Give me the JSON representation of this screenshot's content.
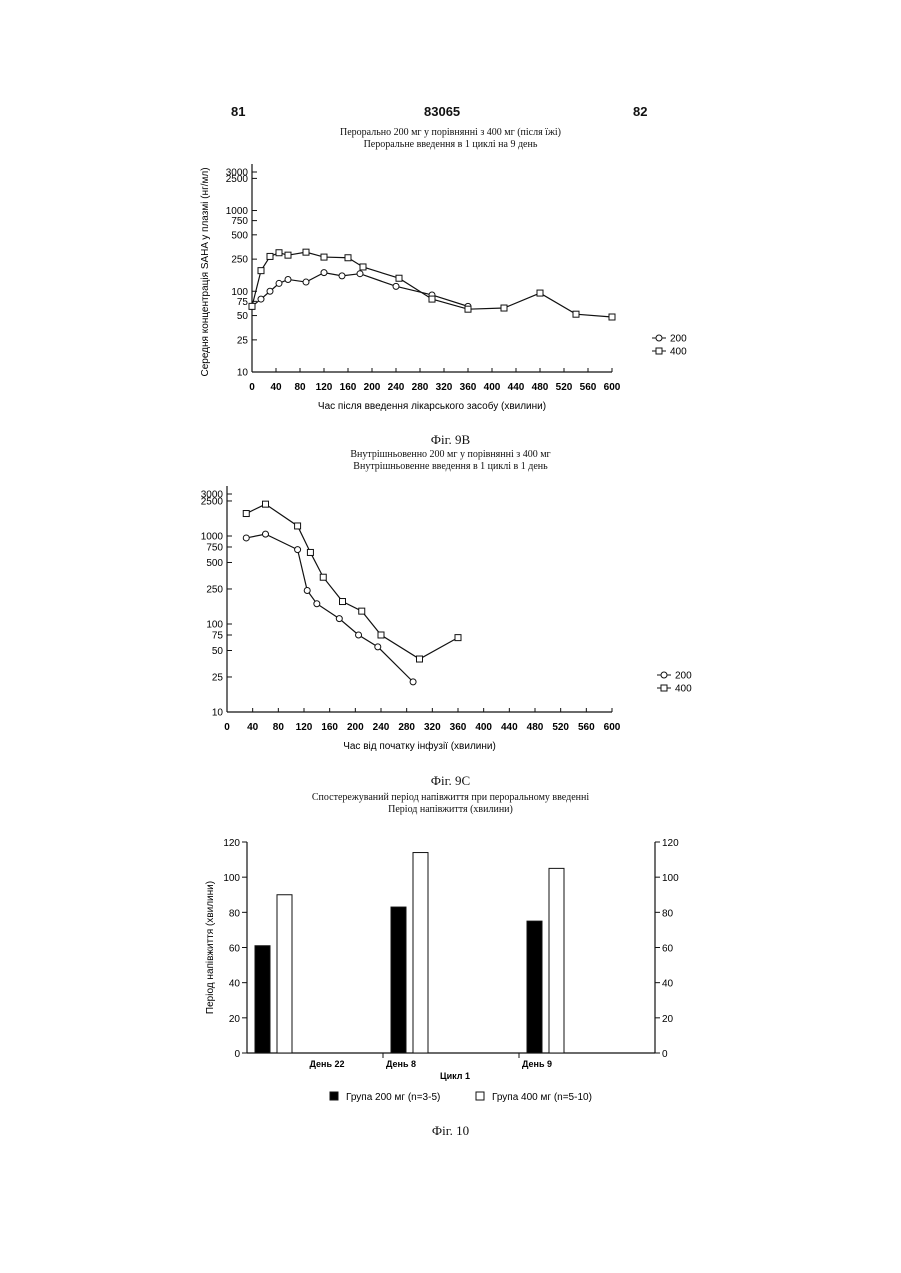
{
  "header": {
    "left_page": "81",
    "doc_number": "83065",
    "right_page": "82"
  },
  "figures": {
    "chart1_title_line1": "Перорально 200 мг у порівнянні з 400 мг (після їжі)",
    "chart1_title_line2": "Пероральне введення в 1 циклі на 9 день",
    "fig9b_label": "Фіг. 9В",
    "chart2_title_line1": "Внутрішньовенно 200 мг у порівнянні з 400 мг",
    "chart2_title_line2": "Внутрішньовенне введення в 1 циклі в 1 день",
    "fig9c_label": "Фіг. 9С",
    "chart3_title_line1": "Спостережуваний період напівжиття при пероральному введенні",
    "chart3_title_line2": "Період напівжиття (хвилини)",
    "fig10_label": "Фіг. 10"
  },
  "chart_data": [
    {
      "type": "line",
      "title": "Перорально 200 мг у порівнянні з 400 мг (після їжі)",
      "subtitle": "Пероральне введення в 1 циклі на 9 день",
      "xlabel": "Час після введення лікарського засобу (хвилини)",
      "ylabel": "Середня концентрація SAHA у плазмі (нг/мл)",
      "xlim": [
        0,
        600
      ],
      "ylim": [
        10,
        3000
      ],
      "yscale": "log",
      "x_ticks": [
        0,
        40,
        80,
        120,
        160,
        200,
        240,
        280,
        320,
        360,
        400,
        440,
        480,
        520,
        560,
        600
      ],
      "y_ticks": [
        10,
        25,
        50,
        75,
        100,
        250,
        500,
        750,
        1000,
        2500,
        3000
      ],
      "legend_position": "right",
      "series": [
        {
          "name": "200",
          "marker": "circle",
          "x": [
            0,
            15,
            30,
            45,
            60,
            90,
            120,
            150,
            180,
            240,
            300,
            360
          ],
          "y": [
            65,
            80,
            100,
            125,
            140,
            130,
            170,
            155,
            165,
            115,
            90,
            65
          ]
        },
        {
          "name": "400",
          "marker": "square",
          "x": [
            0,
            15,
            30,
            45,
            60,
            90,
            120,
            160,
            185,
            245,
            300,
            360,
            420,
            480,
            540,
            600
          ],
          "y": [
            65,
            180,
            270,
            300,
            280,
            305,
            265,
            260,
            200,
            145,
            80,
            60,
            62,
            95,
            52,
            48
          ]
        }
      ]
    },
    {
      "type": "line",
      "title": "Внутрішньовенно 200 мг у порівнянні з 400 мг",
      "subtitle": "Внутрішньовенне введення в 1 циклі в 1 день",
      "xlabel": "Час від початку інфузії (хвилини)",
      "ylabel": "",
      "xlim": [
        0,
        600
      ],
      "ylim": [
        10,
        3000
      ],
      "yscale": "log",
      "x_ticks": [
        0,
        40,
        80,
        120,
        160,
        200,
        240,
        280,
        320,
        360,
        400,
        440,
        480,
        520,
        560,
        600
      ],
      "y_ticks": [
        10,
        25,
        50,
        75,
        100,
        250,
        500,
        750,
        1000,
        2500,
        3000
      ],
      "legend_position": "right",
      "series": [
        {
          "name": "200",
          "marker": "circle",
          "x": [
            30,
            60,
            110,
            125,
            140,
            175,
            205,
            235,
            290
          ],
          "y": [
            950,
            1050,
            700,
            240,
            170,
            115,
            75,
            55,
            22
          ]
        },
        {
          "name": "400",
          "marker": "square",
          "x": [
            30,
            60,
            110,
            130,
            150,
            180,
            210,
            240,
            300,
            360
          ],
          "y": [
            1800,
            2300,
            1300,
            650,
            340,
            180,
            140,
            75,
            40,
            70
          ]
        }
      ]
    },
    {
      "type": "bar",
      "title": "Спостережуваний період напівжиття при пероральному введенні",
      "subtitle": "Період напівжиття (хвилини)",
      "xlabel": "Цикл 1",
      "ylabel": "Період напівжиття (хвилини)",
      "ylim": [
        0,
        120
      ],
      "y_ticks": [
        0,
        20,
        40,
        60,
        80,
        100,
        120
      ],
      "categories": [
        "День 22",
        "День 8",
        "День 9"
      ],
      "series": [
        {
          "name": "Група 200 мг (n=3-5)",
          "fill": "#000000",
          "values": [
            61,
            83,
            75
          ]
        },
        {
          "name": "Група 400 мг (n=5-10)",
          "fill": "#ffffff",
          "values": [
            90,
            114,
            105
          ]
        }
      ],
      "legend_position": "bottom"
    }
  ]
}
